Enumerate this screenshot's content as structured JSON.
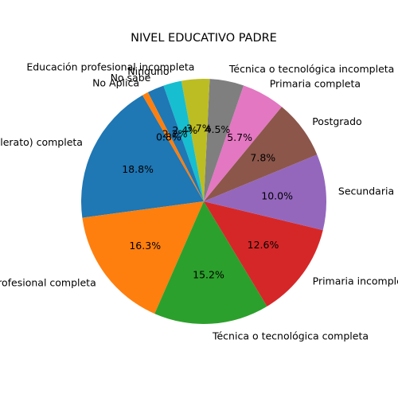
{
  "chart_data": {
    "type": "pie",
    "title": "NIVEL EDUCATIVO PADRE",
    "start_angle_deg": 120,
    "direction": "counterclockwise",
    "slices": [
      {
        "label": "Bachillerato) completa",
        "value": 18.8,
        "pct_label": "18.8%",
        "color": "#1f77b4"
      },
      {
        "label": "Educación profesional completa",
        "value": 16.3,
        "pct_label": "16.3%",
        "color": "#ff7f0e"
      },
      {
        "label": "Técnica o tecnológica completa",
        "value": 15.2,
        "pct_label": "15.2%",
        "color": "#2ca02c"
      },
      {
        "label": "Primaria incompleta",
        "value": 12.6,
        "pct_label": "12.6%",
        "color": "#d62728"
      },
      {
        "label": "Secundaria incompleta",
        "value": 10.0,
        "pct_label": "10.0%",
        "color": "#9467bd"
      },
      {
        "label": "Postgrado",
        "value": 7.8,
        "pct_label": "7.8%",
        "color": "#8c564b"
      },
      {
        "label": "Primaria completa",
        "value": 5.7,
        "pct_label": "5.7%",
        "color": "#e377c2"
      },
      {
        "label": "Técnica o tecnológica incompleta",
        "value": 4.5,
        "pct_label": "4.5%",
        "color": "#7f7f7f"
      },
      {
        "label": "Educación profesional incompleta",
        "value": 3.7,
        "pct_label": "3.7%",
        "color": "#bcbd22"
      },
      {
        "label": "Ninguno",
        "value": 2.4,
        "pct_label": "2.4%",
        "color": "#17becf"
      },
      {
        "label": "No sabe",
        "value": 2.2,
        "pct_label": "2.2%",
        "color": "#1f77b4"
      },
      {
        "label": "No Aplica",
        "value": 0.8,
        "pct_label": "0.8%",
        "color": "#ff7f0e"
      }
    ]
  }
}
